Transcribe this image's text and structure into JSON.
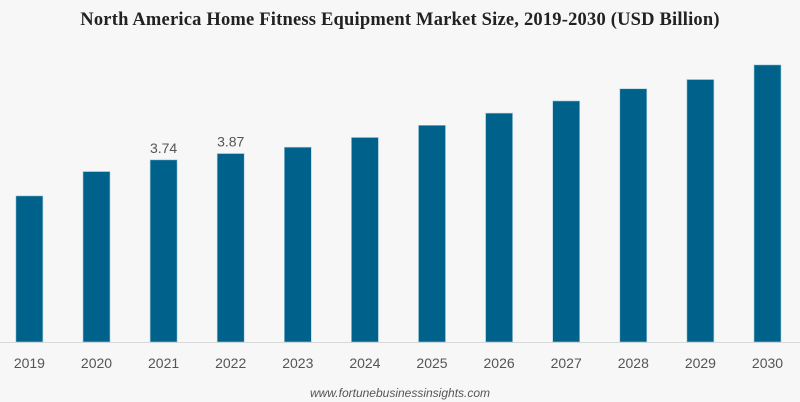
{
  "chart_data": {
    "type": "bar",
    "title": "North America Home Fitness Equipment Market Size, 2019-2030 (USD Billion)",
    "categories": [
      "2019",
      "2020",
      "2021",
      "2022",
      "2023",
      "2024",
      "2025",
      "2026",
      "2027",
      "2028",
      "2029",
      "2030"
    ],
    "values": [
      3.0,
      3.5,
      3.74,
      3.87,
      4.0,
      4.2,
      4.45,
      4.7,
      4.95,
      5.2,
      5.39,
      5.69
    ],
    "data_labels": {
      "2021": "3.74",
      "2022": "3.87"
    },
    "xlabel": "",
    "ylabel": "",
    "ylim": [
      0,
      6.3
    ],
    "grid": false,
    "bar_color": "#00628b"
  },
  "footer": "www.fortunebusinessinsights.com"
}
